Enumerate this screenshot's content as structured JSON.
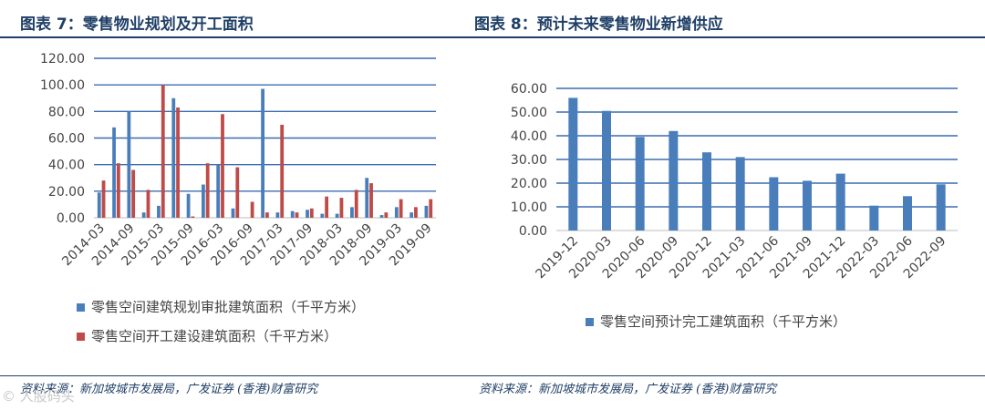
{
  "left": {
    "title": "图表 7：零售物业规划及开工面积",
    "source": "资料来源：新加坡城市发展局，广发证券 (香港)财富研究",
    "chart_data": {
      "type": "bar",
      "categories": [
        "2014-03",
        "2014-06",
        "2014-09",
        "2014-12",
        "2015-03",
        "2015-06",
        "2015-09",
        "2015-12",
        "2016-03",
        "2016-06",
        "2016-09",
        "2016-12",
        "2017-03",
        "2017-06",
        "2017-09",
        "2017-12",
        "2018-03",
        "2018-06",
        "2018-09",
        "2018-12",
        "2019-03",
        "2019-06",
        "2019-09"
      ],
      "tick_labels": [
        "2014-03",
        "2014-09",
        "2015-03",
        "2015-09",
        "2016-03",
        "2016-09",
        "2017-03",
        "2017-09",
        "2018-03",
        "2018-09",
        "2019-03",
        "2019-09"
      ],
      "series": [
        {
          "name": "零售空间建筑规划审批建筑面积（千平方米）",
          "color": "#4a7ebb",
          "values": [
            19,
            68,
            80,
            4,
            9,
            90,
            18,
            25,
            40,
            7,
            0,
            97,
            4,
            5,
            6,
            3,
            3,
            8,
            30,
            2,
            8,
            4,
            9
          ]
        },
        {
          "name": "零售空间开工建设建筑面积（千平方米）",
          "color": "#be4b48",
          "values": [
            28,
            41,
            36,
            21,
            100,
            83,
            1,
            41,
            78,
            38,
            12,
            4,
            70,
            4,
            7,
            16,
            15,
            21,
            26,
            4,
            14,
            8,
            14
          ]
        }
      ],
      "yticks": [
        "0.00",
        "20.00",
        "40.00",
        "60.00",
        "80.00",
        "100.00",
        "120.00"
      ],
      "ylim": [
        0,
        120
      ],
      "grid": true,
      "legend": "bottom"
    }
  },
  "right": {
    "title": "图表 8：预计未来零售物业新增供应",
    "source": "资料来源：新加坡城市发展局，广发证券 (香港)财富研究",
    "chart_data": {
      "type": "bar",
      "categories": [
        "2019-12",
        "2020-03",
        "2020-06",
        "2020-09",
        "2020-12",
        "2021-03",
        "2021-06",
        "2021-09",
        "2021-12",
        "2022-03",
        "2022-06",
        "2022-09"
      ],
      "series": [
        {
          "name": "零售空间预计完工建筑面积（千平方米）",
          "color": "#4a7ebb",
          "values": [
            56,
            50.5,
            39.5,
            42,
            33,
            31,
            22.5,
            21,
            24,
            10.5,
            14.5,
            19.5
          ]
        }
      ],
      "yticks": [
        "0.00",
        "10.00",
        "20.00",
        "30.00",
        "40.00",
        "50.00",
        "60.00"
      ],
      "ylim": [
        0,
        60
      ],
      "grid": true,
      "legend": "bottom"
    }
  },
  "watermark": "© 人股码头"
}
